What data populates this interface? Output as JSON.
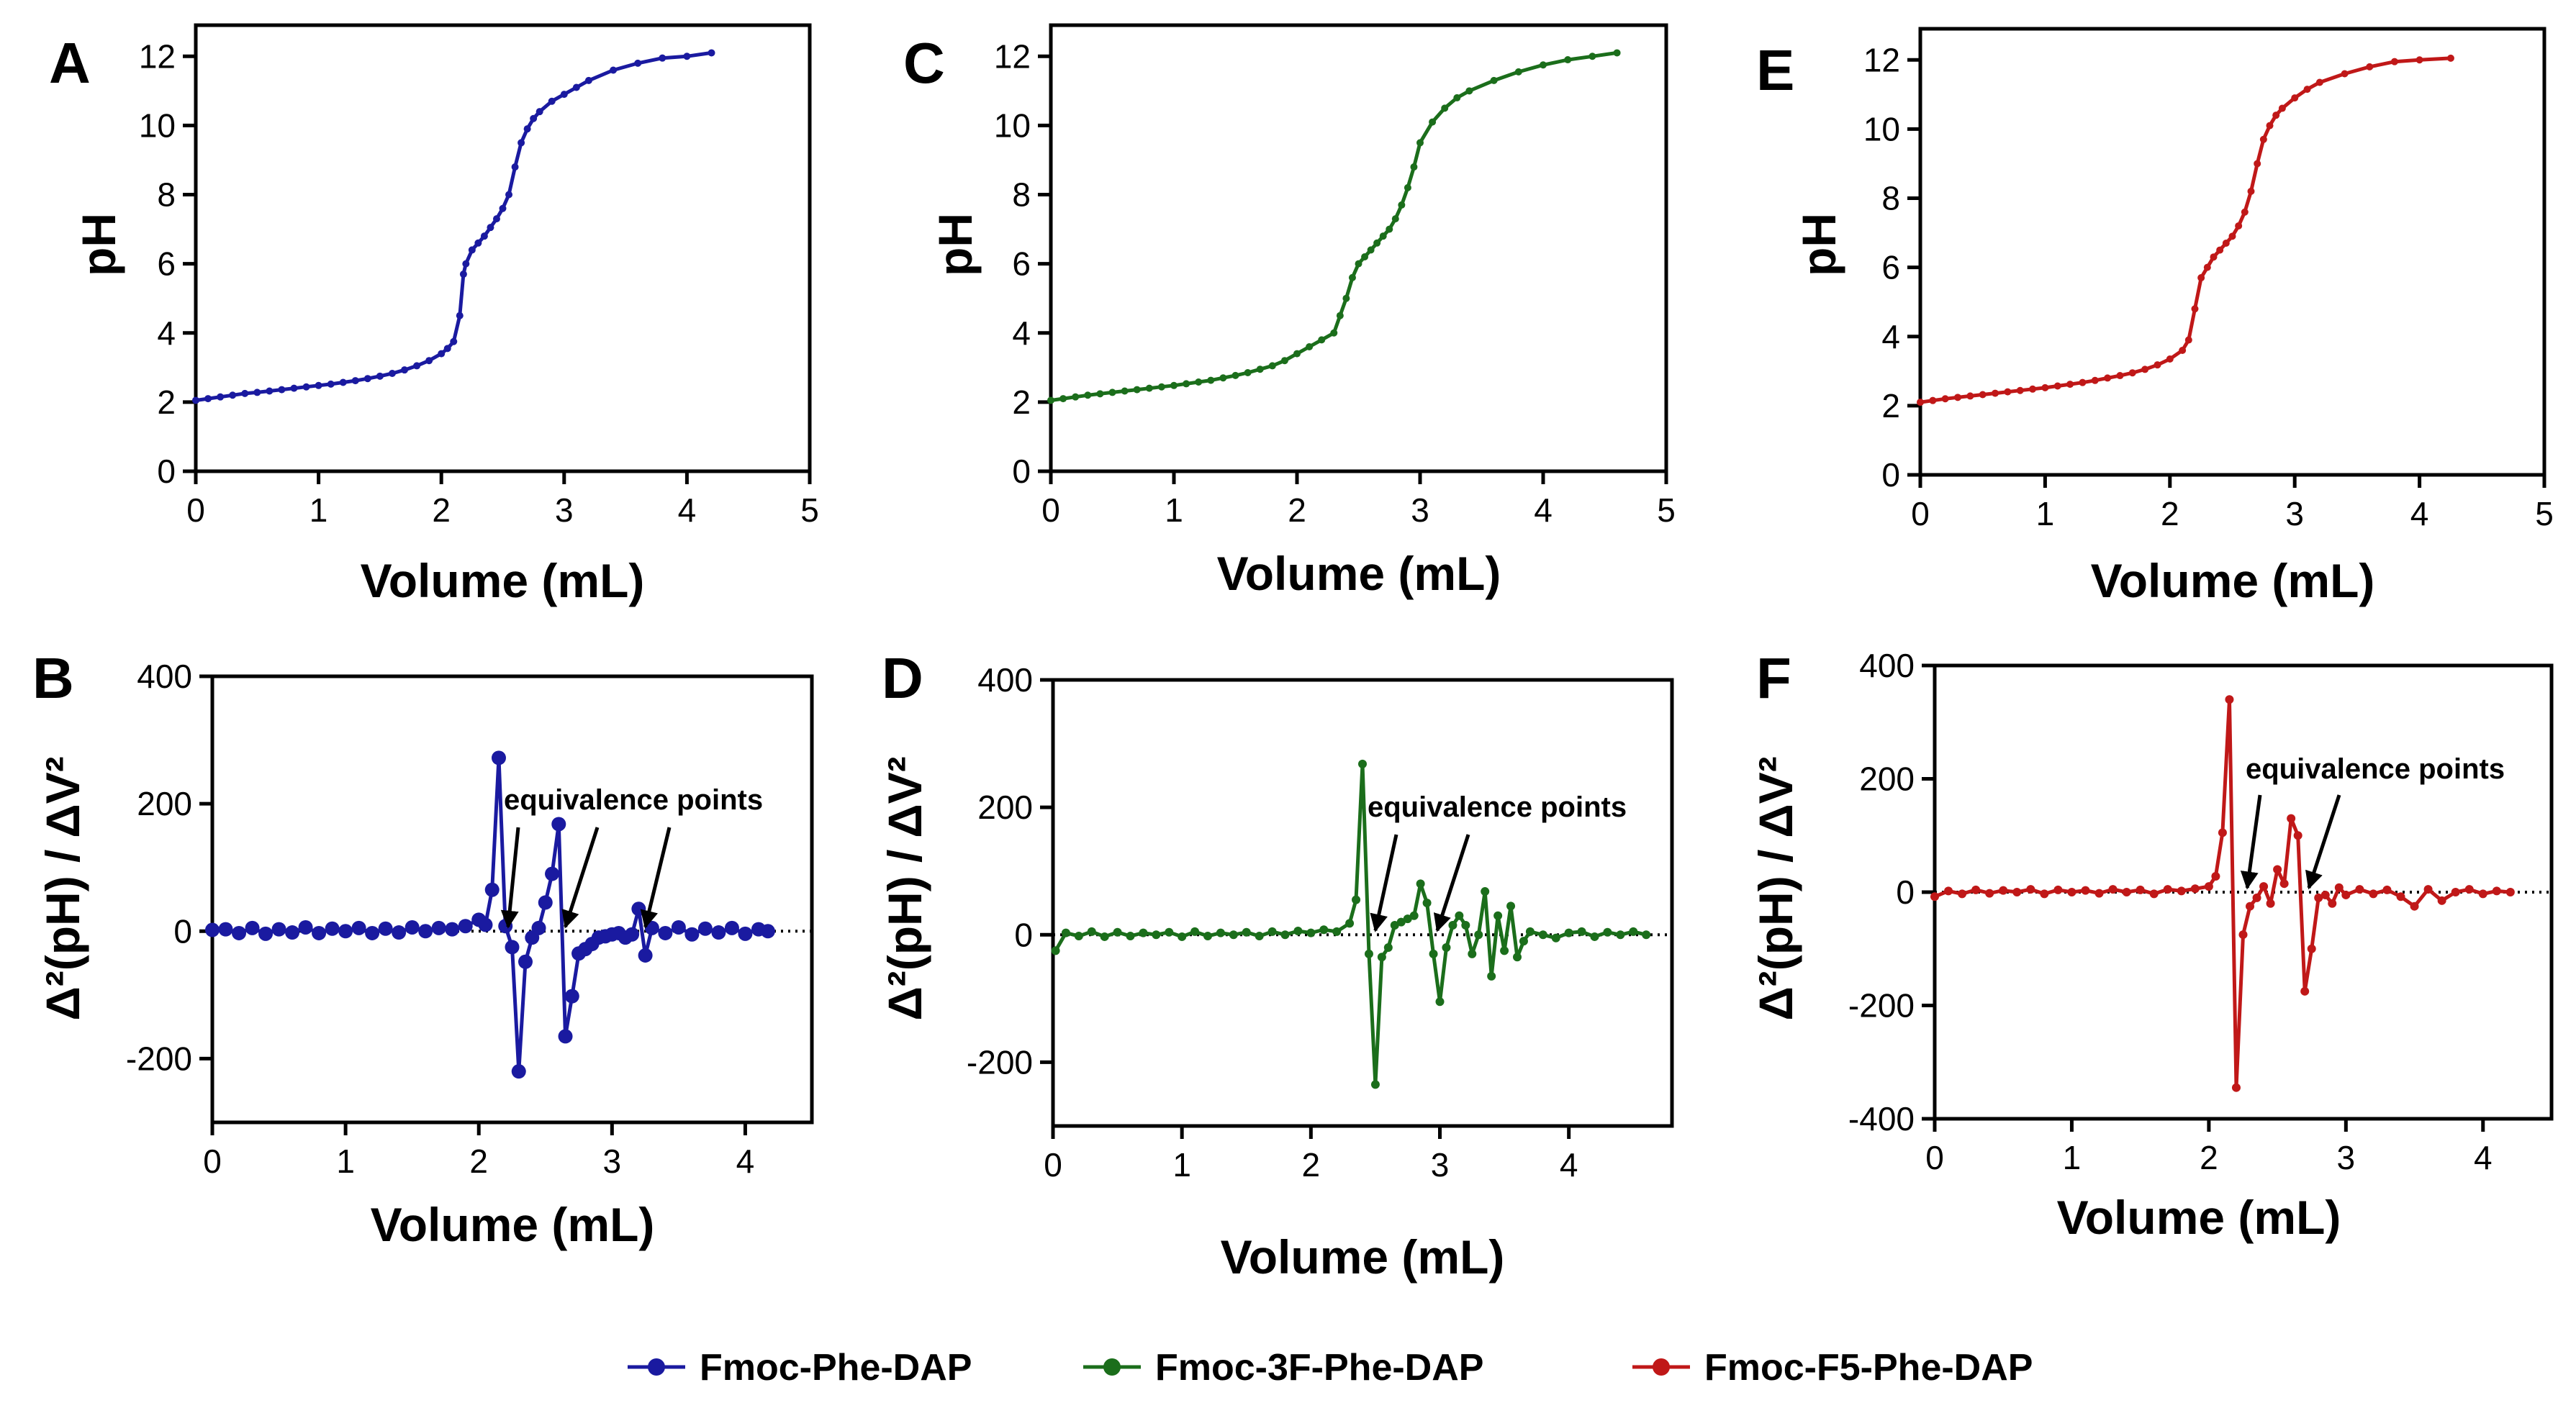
{
  "colors": {
    "Fmoc-Phe-DAP": "#1a1aa0",
    "Fmoc-3F-Phe-DAP": "#1b6e1b",
    "Fmoc-F5-Phe-DAP": "#c01818"
  },
  "legend": [
    {
      "label": "Fmoc-Phe-DAP"
    },
    {
      "label": "Fmoc-3F-Phe-DAP"
    },
    {
      "label": "Fmoc-F5-Phe-DAP"
    }
  ],
  "chart_data": [
    {
      "id": "A",
      "type": "line",
      "panel_label": "A",
      "series_name": "Fmoc-Phe-DAP",
      "xlabel": "Volume (mL)",
      "ylabel": "pH",
      "xlim": [
        0,
        5
      ],
      "ylim": [
        0,
        12.9
      ],
      "xticks": [
        0,
        1,
        2,
        3,
        4,
        5
      ],
      "yticks": [
        0,
        2,
        4,
        6,
        8,
        10,
        12
      ],
      "x": [
        0.0,
        0.1,
        0.2,
        0.3,
        0.4,
        0.5,
        0.6,
        0.7,
        0.8,
        0.9,
        1.0,
        1.1,
        1.2,
        1.3,
        1.4,
        1.5,
        1.6,
        1.7,
        1.8,
        1.9,
        2.0,
        2.05,
        2.1,
        2.15,
        2.18,
        2.2,
        2.25,
        2.3,
        2.35,
        2.4,
        2.45,
        2.5,
        2.55,
        2.6,
        2.65,
        2.7,
        2.75,
        2.8,
        2.9,
        3.0,
        3.1,
        3.2,
        3.4,
        3.6,
        3.8,
        4.0,
        4.2
      ],
      "values": [
        2.05,
        2.1,
        2.15,
        2.2,
        2.25,
        2.28,
        2.32,
        2.36,
        2.4,
        2.44,
        2.48,
        2.52,
        2.57,
        2.62,
        2.68,
        2.75,
        2.83,
        2.93,
        3.05,
        3.2,
        3.4,
        3.55,
        3.75,
        4.5,
        5.7,
        6.0,
        6.4,
        6.6,
        6.8,
        7.05,
        7.3,
        7.6,
        8.0,
        8.8,
        9.5,
        9.9,
        10.2,
        10.4,
        10.7,
        10.9,
        11.1,
        11.3,
        11.6,
        11.8,
        11.95,
        12.0,
        12.1
      ]
    },
    {
      "id": "C",
      "type": "line",
      "panel_label": "C",
      "series_name": "Fmoc-3F-Phe-DAP",
      "xlabel": "Volume (mL)",
      "ylabel": "pH",
      "xlim": [
        0,
        5
      ],
      "ylim": [
        0,
        12.9
      ],
      "xticks": [
        0,
        1,
        2,
        3,
        4,
        5
      ],
      "yticks": [
        0,
        2,
        4,
        6,
        8,
        10,
        12
      ],
      "x": [
        0.0,
        0.1,
        0.2,
        0.3,
        0.4,
        0.5,
        0.6,
        0.7,
        0.8,
        0.9,
        1.0,
        1.1,
        1.2,
        1.3,
        1.4,
        1.5,
        1.6,
        1.7,
        1.8,
        1.9,
        2.0,
        2.1,
        2.2,
        2.3,
        2.35,
        2.4,
        2.45,
        2.5,
        2.55,
        2.6,
        2.65,
        2.7,
        2.75,
        2.8,
        2.85,
        2.9,
        2.95,
        3.0,
        3.1,
        3.2,
        3.3,
        3.4,
        3.6,
        3.8,
        4.0,
        4.2,
        4.4,
        4.6
      ],
      "values": [
        2.05,
        2.1,
        2.15,
        2.2,
        2.24,
        2.28,
        2.32,
        2.36,
        2.4,
        2.44,
        2.48,
        2.53,
        2.58,
        2.63,
        2.7,
        2.77,
        2.85,
        2.95,
        3.05,
        3.2,
        3.4,
        3.6,
        3.8,
        4.0,
        4.5,
        5.0,
        5.6,
        6.0,
        6.2,
        6.4,
        6.6,
        6.8,
        7.0,
        7.3,
        7.7,
        8.2,
        8.8,
        9.5,
        10.1,
        10.5,
        10.8,
        11.0,
        11.3,
        11.55,
        11.75,
        11.9,
        12.0,
        12.1
      ]
    },
    {
      "id": "E",
      "type": "line",
      "panel_label": "E",
      "series_name": "Fmoc-F5-Phe-DAP",
      "xlabel": "Volume (mL)",
      "ylabel": "pH",
      "xlim": [
        0,
        5
      ],
      "ylim": [
        0,
        12.9
      ],
      "xticks": [
        0,
        1,
        2,
        3,
        4,
        5
      ],
      "yticks": [
        0,
        2,
        4,
        6,
        8,
        10,
        12
      ],
      "x": [
        0.0,
        0.1,
        0.2,
        0.3,
        0.4,
        0.5,
        0.6,
        0.7,
        0.8,
        0.9,
        1.0,
        1.1,
        1.2,
        1.3,
        1.4,
        1.5,
        1.6,
        1.7,
        1.8,
        1.9,
        2.0,
        2.1,
        2.15,
        2.2,
        2.25,
        2.3,
        2.35,
        2.4,
        2.45,
        2.5,
        2.55,
        2.6,
        2.65,
        2.7,
        2.75,
        2.8,
        2.85,
        2.9,
        3.0,
        3.1,
        3.2,
        3.4,
        3.6,
        3.8,
        4.0,
        4.25
      ],
      "values": [
        2.1,
        2.15,
        2.2,
        2.24,
        2.28,
        2.32,
        2.36,
        2.4,
        2.44,
        2.48,
        2.52,
        2.57,
        2.62,
        2.67,
        2.73,
        2.8,
        2.87,
        2.95,
        3.05,
        3.18,
        3.35,
        3.6,
        3.9,
        4.8,
        5.7,
        6.0,
        6.3,
        6.5,
        6.7,
        6.9,
        7.2,
        7.6,
        8.2,
        9.0,
        9.7,
        10.1,
        10.4,
        10.6,
        10.9,
        11.15,
        11.35,
        11.6,
        11.8,
        11.95,
        12.0,
        12.05
      ]
    },
    {
      "id": "B",
      "type": "line",
      "panel_label": "B",
      "series_name": "Fmoc-Phe-DAP",
      "xlabel": "Volume (mL)",
      "ylabel": "Δ²(pH) / ΔV²",
      "xlim": [
        0,
        4.5
      ],
      "ylim": [
        -300,
        400
      ],
      "xticks": [
        0,
        1,
        2,
        3,
        4
      ],
      "yticks": [
        -200,
        0,
        200,
        400
      ],
      "annotation": "equivalence points",
      "arrow_targets": [
        {
          "x": 2.22,
          "y": 0
        },
        {
          "x": 2.65,
          "y": 0
        },
        {
          "x": 3.25,
          "y": 0
        }
      ],
      "x": [
        0.0,
        0.1,
        0.2,
        0.3,
        0.4,
        0.5,
        0.6,
        0.7,
        0.8,
        0.9,
        1.0,
        1.1,
        1.2,
        1.3,
        1.4,
        1.5,
        1.6,
        1.7,
        1.8,
        1.9,
        2.0,
        2.05,
        2.1,
        2.15,
        2.2,
        2.25,
        2.3,
        2.35,
        2.4,
        2.45,
        2.5,
        2.55,
        2.6,
        2.65,
        2.7,
        2.75,
        2.8,
        2.85,
        2.9,
        2.95,
        3.0,
        3.05,
        3.1,
        3.15,
        3.2,
        3.25,
        3.3,
        3.4,
        3.5,
        3.6,
        3.7,
        3.8,
        3.9,
        4.0,
        4.1,
        4.17
      ],
      "values": [
        2,
        3,
        -3,
        5,
        -4,
        3,
        -2,
        6,
        -3,
        4,
        0,
        5,
        -3,
        4,
        -2,
        6,
        0,
        5,
        3,
        8,
        18,
        10,
        65,
        272,
        8,
        -25,
        -220,
        -48,
        -10,
        5,
        45,
        90,
        168,
        -165,
        -102,
        -35,
        -28,
        -20,
        -10,
        -8,
        -5,
        -3,
        -10,
        -5,
        35,
        -38,
        5,
        -3,
        6,
        -5,
        4,
        -2,
        5,
        -4,
        3,
        0
      ]
    },
    {
      "id": "D",
      "type": "line",
      "panel_label": "D",
      "series_name": "Fmoc-3F-Phe-DAP",
      "xlabel": "Volume (mL)",
      "ylabel": "Δ²(pH) / ΔV²",
      "xlim": [
        0,
        4.8
      ],
      "ylim": [
        -300,
        400
      ],
      "xticks": [
        0,
        1,
        2,
        3,
        4
      ],
      "yticks": [
        -200,
        0,
        200,
        400
      ],
      "annotation": "equivalence points",
      "arrow_targets": [
        {
          "x": 2.5,
          "y": 0
        },
        {
          "x": 2.98,
          "y": 0
        }
      ],
      "x": [
        0.02,
        0.1,
        0.2,
        0.3,
        0.4,
        0.5,
        0.6,
        0.7,
        0.8,
        0.9,
        1.0,
        1.1,
        1.2,
        1.3,
        1.4,
        1.5,
        1.6,
        1.7,
        1.8,
        1.9,
        2.0,
        2.1,
        2.2,
        2.3,
        2.35,
        2.4,
        2.45,
        2.5,
        2.55,
        2.6,
        2.65,
        2.7,
        2.75,
        2.8,
        2.85,
        2.9,
        2.95,
        3.0,
        3.05,
        3.1,
        3.15,
        3.2,
        3.25,
        3.3,
        3.35,
        3.4,
        3.45,
        3.5,
        3.55,
        3.6,
        3.65,
        3.7,
        3.8,
        3.9,
        4.0,
        4.1,
        4.2,
        4.3,
        4.4,
        4.5,
        4.6
      ],
      "values": [
        -25,
        3,
        -2,
        5,
        -3,
        4,
        -2,
        3,
        0,
        4,
        -3,
        5,
        -2,
        3,
        0,
        4,
        -2,
        5,
        0,
        6,
        3,
        8,
        5,
        18,
        55,
        268,
        -30,
        -235,
        -35,
        -20,
        15,
        20,
        25,
        30,
        80,
        50,
        -30,
        -105,
        -20,
        15,
        30,
        15,
        -30,
        0,
        68,
        -65,
        30,
        -25,
        45,
        -35,
        -10,
        5,
        0,
        -5,
        3,
        5,
        -3,
        4,
        0,
        5,
        0
      ]
    },
    {
      "id": "F",
      "type": "line",
      "panel_label": "F",
      "series_name": "Fmoc-F5-Phe-DAP",
      "xlabel": "Volume (mL)",
      "ylabel": "Δ²(pH) / ΔV²",
      "xlim": [
        0,
        4.5
      ],
      "ylim": [
        -400,
        400
      ],
      "xticks": [
        0,
        1,
        2,
        3,
        4
      ],
      "yticks": [
        -400,
        -200,
        0,
        200,
        400
      ],
      "annotation": "equivalence points",
      "arrow_targets": [
        {
          "x": 2.28,
          "y": 0
        },
        {
          "x": 2.73,
          "y": 0
        }
      ],
      "x": [
        0.0,
        0.1,
        0.2,
        0.3,
        0.4,
        0.5,
        0.6,
        0.7,
        0.8,
        0.9,
        1.0,
        1.1,
        1.2,
        1.3,
        1.4,
        1.5,
        1.6,
        1.7,
        1.8,
        1.9,
        2.0,
        2.05,
        2.1,
        2.15,
        2.2,
        2.25,
        2.3,
        2.35,
        2.4,
        2.45,
        2.5,
        2.55,
        2.6,
        2.65,
        2.7,
        2.75,
        2.8,
        2.85,
        2.9,
        2.95,
        3.0,
        3.1,
        3.2,
        3.3,
        3.4,
        3.5,
        3.6,
        3.7,
        3.8,
        3.9,
        4.0,
        4.1,
        4.2
      ],
      "values": [
        -8,
        2,
        -3,
        4,
        -2,
        3,
        0,
        5,
        -3,
        4,
        0,
        3,
        -2,
        5,
        0,
        4,
        -3,
        5,
        2,
        6,
        10,
        28,
        105,
        340,
        -345,
        -75,
        -25,
        -10,
        10,
        -20,
        40,
        15,
        130,
        100,
        -175,
        -100,
        -10,
        -5,
        -20,
        8,
        -5,
        5,
        -3,
        4,
        -8,
        -25,
        5,
        -15,
        0,
        5,
        -3,
        2,
        0
      ]
    }
  ]
}
